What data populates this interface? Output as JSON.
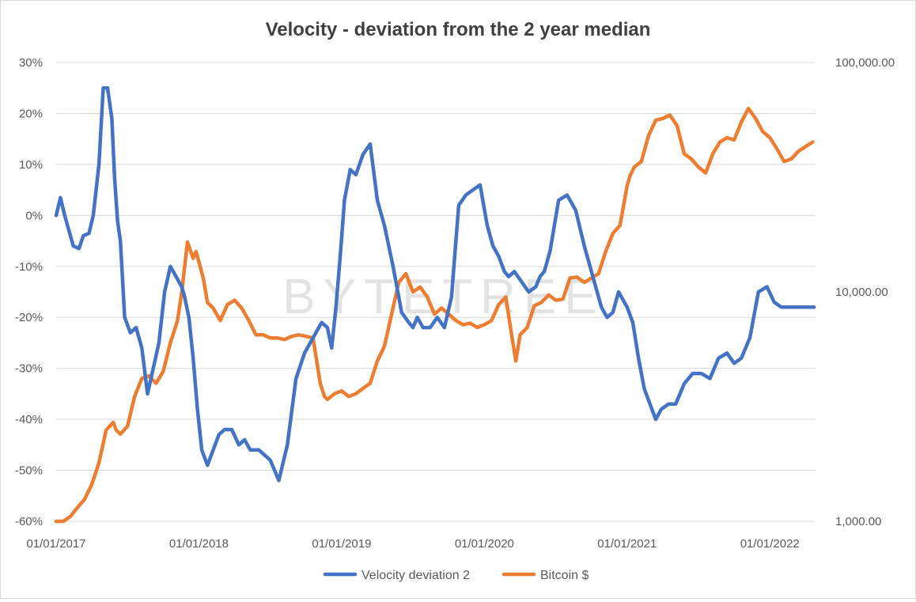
{
  "chart_data": {
    "type": "line",
    "title": "Velocity - deviation from the 2 year median",
    "watermark": "BYTETREE",
    "x_ticks": [
      "01/01/2017",
      "01/01/2018",
      "01/01/2019",
      "01/01/2020",
      "01/01/2021",
      "01/01/2022"
    ],
    "x_range": [
      2017.0,
      2022.32
    ],
    "y_left": {
      "ticks": [
        "30%",
        "20%",
        "10%",
        "0%",
        "-10%",
        "-20%",
        "-30%",
        "-40%",
        "-50%",
        "-60%"
      ],
      "tick_values": [
        30,
        20,
        10,
        0,
        -10,
        -20,
        -30,
        -40,
        -50,
        -60
      ],
      "range": [
        -60,
        30
      ]
    },
    "y_right": {
      "ticks": [
        "100,000.00",
        "10,000.00",
        "1,000.00"
      ],
      "tick_values": [
        100000,
        10000,
        1000
      ],
      "range": [
        1000,
        100000
      ],
      "scale": "log"
    },
    "legend_position": "bottom",
    "series": [
      {
        "name": "Velocity deviation 2",
        "axis": "left",
        "color": "#4472c4",
        "x": [
          2017.0,
          2017.03,
          2017.06,
          2017.09,
          2017.12,
          2017.16,
          2017.19,
          2017.23,
          2017.26,
          2017.3,
          2017.33,
          2017.36,
          2017.39,
          2017.41,
          2017.43,
          2017.45,
          2017.48,
          2017.52,
          2017.56,
          2017.6,
          2017.64,
          2017.68,
          2017.72,
          2017.76,
          2017.8,
          2017.84,
          2017.88,
          2017.9,
          2017.93,
          2017.96,
          2017.99,
          2018.02,
          2018.06,
          2018.1,
          2018.14,
          2018.18,
          2018.23,
          2018.28,
          2018.32,
          2018.36,
          2018.42,
          2018.5,
          2018.56,
          2018.62,
          2018.68,
          2018.74,
          2018.8,
          2018.86,
          2018.9,
          2018.93,
          2018.96,
          2018.99,
          2019.02,
          2019.06,
          2019.1,
          2019.15,
          2019.2,
          2019.25,
          2019.3,
          2019.36,
          2019.42,
          2019.47,
          2019.5,
          2019.53,
          2019.57,
          2019.62,
          2019.67,
          2019.72,
          2019.77,
          2019.82,
          2019.87,
          2019.92,
          2019.97,
          2020.02,
          2020.06,
          2020.1,
          2020.14,
          2020.17,
          2020.21,
          2020.26,
          2020.31,
          2020.36,
          2020.39,
          2020.42,
          2020.46,
          2020.52,
          2020.58,
          2020.64,
          2020.7,
          2020.76,
          2020.82,
          2020.86,
          2020.9,
          2020.94,
          2020.98,
          2021.0,
          2021.04,
          2021.08,
          2021.12,
          2021.16,
          2021.2,
          2021.24,
          2021.29,
          2021.34,
          2021.4,
          2021.46,
          2021.52,
          2021.58,
          2021.64,
          2021.7,
          2021.75,
          2021.8,
          2021.86,
          2021.92,
          2021.98,
          2022.03,
          2022.08,
          2022.13,
          2022.17,
          2022.2,
          2022.23,
          2022.26,
          2022.29,
          2022.31
        ],
        "y": [
          0,
          3.5,
          0,
          -3,
          -6,
          -6.5,
          -4,
          -3.5,
          0,
          10,
          25,
          25,
          19,
          7,
          -1,
          -5,
          -20,
          -23,
          -22,
          -26,
          -35,
          -30,
          -25,
          -15,
          -10,
          -12,
          -14,
          -16,
          -20,
          -28,
          -38,
          -46,
          -49,
          -46,
          -43,
          -42,
          -42,
          -45,
          -44,
          -46,
          -46,
          -48,
          -52,
          -45,
          -32,
          -27,
          -24,
          -21,
          -22,
          -26,
          -18,
          -8,
          3,
          9,
          8,
          12,
          14,
          3,
          -2,
          -10,
          -19,
          -21,
          -22,
          -20,
          -22,
          -22,
          -20,
          -22,
          -16,
          2,
          4,
          5,
          6,
          -2,
          -6,
          -8,
          -11,
          -12,
          -11,
          -13,
          -15,
          -14,
          -12,
          -11,
          -7,
          3,
          4,
          1,
          -6,
          -12,
          -18,
          -20,
          -19,
          -15,
          -17,
          -18,
          -21,
          -28,
          -34,
          -37,
          -40,
          -38,
          -37,
          -37,
          -33,
          -31,
          -31,
          -32,
          -28,
          -27,
          -29,
          -28,
          -24,
          -15,
          -14,
          -17,
          -18,
          -18,
          -18,
          -18,
          -18,
          -18,
          -18,
          -18
        ],
        "note_x_y_trimmed": true
      },
      {
        "name": "Bitcoin $",
        "axis": "right",
        "color": "#ed7d31",
        "x": [
          2017.0,
          2017.05,
          2017.1,
          2017.15,
          2017.2,
          2017.25,
          2017.3,
          2017.35,
          2017.4,
          2017.42,
          2017.45,
          2017.5,
          2017.55,
          2017.6,
          2017.65,
          2017.7,
          2017.75,
          2017.8,
          2017.85,
          2017.88,
          2017.92,
          2017.96,
          2017.98,
          2018.0,
          2018.03,
          2018.06,
          2018.1,
          2018.15,
          2018.2,
          2018.25,
          2018.3,
          2018.35,
          2018.4,
          2018.45,
          2018.5,
          2018.55,
          2018.6,
          2018.65,
          2018.7,
          2018.75,
          2018.8,
          2018.85,
          2018.88,
          2018.9,
          2018.95,
          2019.0,
          2019.05,
          2019.1,
          2019.15,
          2019.2,
          2019.25,
          2019.3,
          2019.35,
          2019.4,
          2019.45,
          2019.5,
          2019.55,
          2019.6,
          2019.65,
          2019.7,
          2019.75,
          2019.8,
          2019.85,
          2019.9,
          2019.95,
          2020.0,
          2020.05,
          2020.1,
          2020.15,
          2020.2,
          2020.22,
          2020.25,
          2020.3,
          2020.35,
          2020.4,
          2020.45,
          2020.5,
          2020.55,
          2020.6,
          2020.65,
          2020.7,
          2020.75,
          2020.8,
          2020.85,
          2020.9,
          2020.95,
          2021.0,
          2021.02,
          2021.05,
          2021.1,
          2021.15,
          2021.2,
          2021.25,
          2021.3,
          2021.35,
          2021.4,
          2021.45,
          2021.5,
          2021.55,
          2021.6,
          2021.65,
          2021.7,
          2021.75,
          2021.8,
          2021.85,
          2021.9,
          2021.95,
          2022.0,
          2022.05,
          2022.1,
          2022.15,
          2022.2,
          2022.25,
          2022.3
        ],
        "y": [
          1000,
          950,
          1050,
          1150,
          1250,
          1450,
          1800,
          2500,
          2700,
          2500,
          2400,
          2600,
          3500,
          4200,
          4300,
          4000,
          4500,
          6000,
          7500,
          10000,
          16500,
          14000,
          15000,
          13500,
          11500,
          9000,
          8500,
          7500,
          8800,
          9200,
          8500,
          7500,
          6500,
          6500,
          6300,
          6300,
          6200,
          6400,
          6500,
          6400,
          6300,
          4000,
          3500,
          3400,
          3600,
          3700,
          3500,
          3600,
          3800,
          4000,
          5000,
          5800,
          8000,
          11000,
          12000,
          10000,
          10500,
          9500,
          8000,
          8500,
          8000,
          7500,
          7200,
          7300,
          7000,
          7200,
          7500,
          8800,
          9500,
          6000,
          5000,
          6500,
          7000,
          8700,
          9000,
          9700,
          9200,
          9300,
          11500,
          11600,
          11000,
          11500,
          12000,
          15000,
          18000,
          19500,
          29000,
          32000,
          35000,
          37000,
          48000,
          56000,
          57000,
          59000,
          53000,
          40000,
          38000,
          35000,
          33000,
          40000,
          45000,
          47000,
          46000,
          55000,
          63000,
          57000,
          50000,
          47000,
          42000,
          37000,
          38000,
          41000,
          43000,
          45000
        ],
        "note_x_y_trimmed": true
      }
    ]
  }
}
